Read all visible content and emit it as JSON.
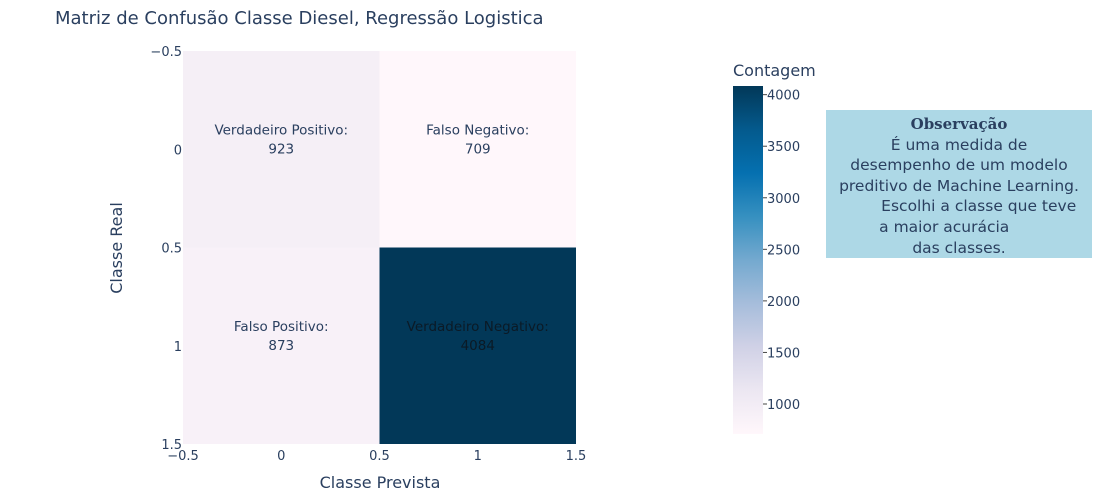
{
  "chart_data": {
    "type": "heatmap",
    "title": "Matriz de Confusão Classe Diesel, Regressão Logistica",
    "xlabel": "Classe Prevista",
    "ylabel": "Classe Real",
    "x_categories": [
      0,
      1
    ],
    "y_categories": [
      0,
      1
    ],
    "x_range": [
      -0.5,
      1.5
    ],
    "y_range": [
      -0.5,
      1.5
    ],
    "y_reversed": true,
    "x_ticks": [
      "−0.5",
      "0",
      "0.5",
      "1",
      "1.5"
    ],
    "y_ticks": [
      "−0.5",
      "0",
      "0.5",
      "1",
      "1.5"
    ],
    "z": [
      [
        923,
        709
      ],
      [
        873,
        4084
      ]
    ],
    "cell_labels": [
      [
        [
          "Verdadeiro Positivo:",
          "923"
        ],
        [
          "Falso Negativo:",
          "709"
        ]
      ],
      [
        [
          "Falso Positivo:",
          "873"
        ],
        [
          "Verdadeiro Negativo:",
          "4084"
        ]
      ]
    ],
    "colorscale": "PuBu",
    "colorbar": {
      "title": "Contagem",
      "range": [
        709,
        4084
      ],
      "ticks": [
        "1000",
        "1500",
        "2000",
        "2500",
        "3000",
        "3500",
        "4000"
      ]
    },
    "grid": false
  },
  "annotation": {
    "title": "Observação",
    "lines": [
      "É uma medida de",
      "desempenho de um modelo",
      "preditivo de Machine Learning.",
      "        Escolhi a classe que teve",
      "a maior acurácia      ",
      "das classes."
    ],
    "background": "#add8e6"
  }
}
